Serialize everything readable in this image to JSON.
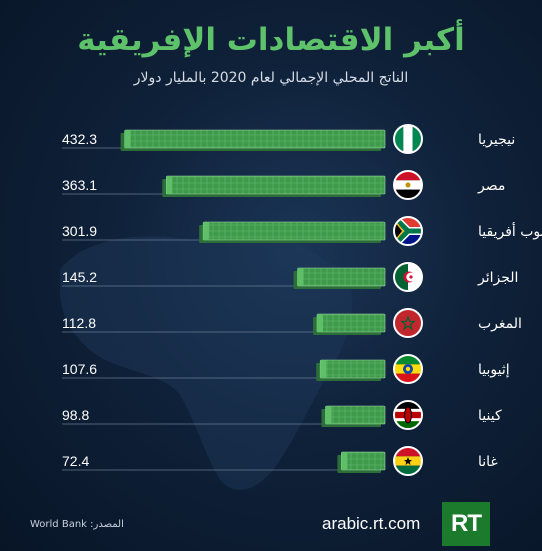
{
  "title": "أكبر الاقتصادات الإفريقية",
  "subtitle": "الناتج المحلي الإجمالي لعام 2020 بالمليار دولار",
  "chart_data": {
    "type": "bar",
    "orientation": "horizontal",
    "categories": [
      "نيجيريا",
      "مصر",
      "جنوب أفريقيا",
      "الجزائر",
      "المغرب",
      "إثيوبيا",
      "كينيا",
      "غانا"
    ],
    "values": [
      432.3,
      363.1,
      301.9,
      145.2,
      112.8,
      107.6,
      98.8,
      72.4
    ],
    "value_labels": [
      "432.3",
      "363.1",
      "301.9",
      "145.2",
      "112.8",
      "107.6",
      "98.8",
      "72.4"
    ],
    "bar_style": "stacked banknotes",
    "bar_color": "#3f9a4c",
    "flags": [
      "nigeria-flag",
      "egypt-flag",
      "south-africa-flag",
      "algeria-flag",
      "morocco-flag",
      "ethiopia-flag",
      "kenya-flag",
      "ghana-flag"
    ],
    "xlim": [
      0,
      440
    ]
  },
  "footer": {
    "url": "arabic.rt.com",
    "source": "المصدر: World Bank",
    "logo": "RT"
  },
  "colors": {
    "title": "#5ec26a",
    "background": "#0f2139",
    "bar": "#3f9a4c"
  }
}
